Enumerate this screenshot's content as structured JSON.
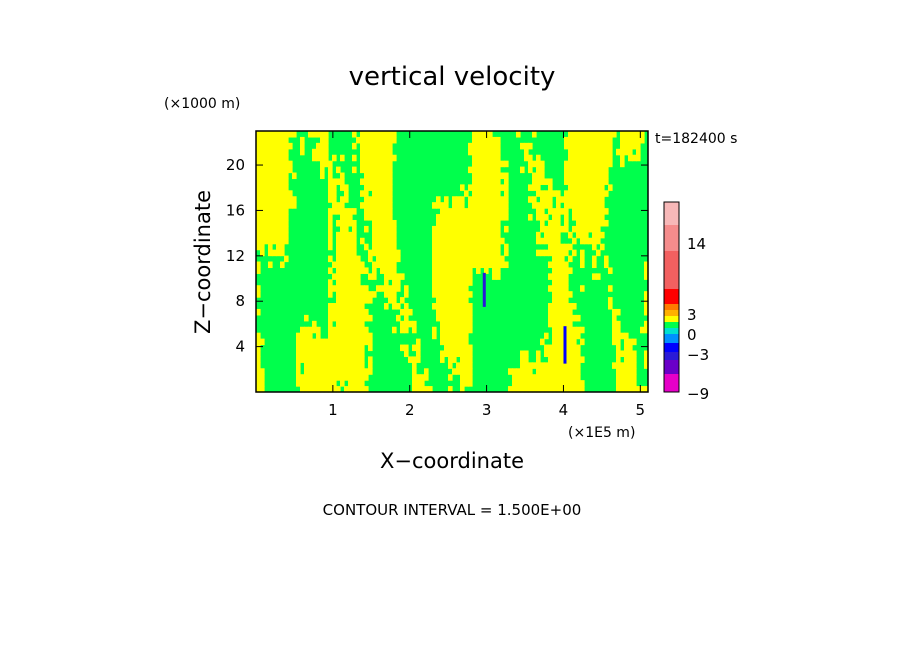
{
  "chart_data": {
    "type": "heatmap",
    "title": "vertical velocity",
    "xlabel": "X−coordinate",
    "ylabel": "Z−coordinate",
    "x_unit_label": "(×1E5 m)",
    "y_unit_label": "(×1000 m)",
    "time_label": "t=182400 s",
    "contour_interval_label": "CONTOUR INTERVAL = 1.500E+00",
    "xlim": [
      0,
      5.1
    ],
    "ylim": [
      0,
      23
    ],
    "x_ticks": [
      1,
      2,
      3,
      4,
      5
    ],
    "y_ticks": [
      4,
      8,
      12,
      16,
      20
    ],
    "colorbar": {
      "levels": [
        {
          "lo": -9,
          "hi": -7.5,
          "color": "#e600c8"
        },
        {
          "lo": -7.5,
          "hi": -6,
          "color": "#6a00c8"
        },
        {
          "lo": -6,
          "hi": -4.5,
          "color": "#2a1ad8"
        },
        {
          "lo": -4.5,
          "hi": -3,
          "color": "#0000ff"
        },
        {
          "lo": -3,
          "hi": -1.5,
          "color": "#0090ff"
        },
        {
          "lo": -1.5,
          "hi": 0,
          "color": "#00e0d0"
        },
        {
          "lo": 0,
          "hi": 1.5,
          "color": "#00ff4c"
        },
        {
          "lo": 1.5,
          "hi": 3,
          "color": "#ffff00"
        },
        {
          "lo": 3,
          "hi": 4.5,
          "color": "#ffb000"
        },
        {
          "lo": 4.5,
          "hi": 6,
          "color": "#ff7a00"
        },
        {
          "lo": 6,
          "hi": 8,
          "color": "#ff0000"
        },
        {
          "lo": 8,
          "hi": 14,
          "color": "#f26060"
        },
        {
          "lo": 14,
          "hi": 18,
          "color": "#f58c8c"
        },
        {
          "lo": 18,
          "hi": 22,
          "color": "#f7b8b8"
        }
      ],
      "tick_labels": [
        "14",
        "3",
        "0",
        "−3",
        "−9"
      ]
    },
    "dominant_fields": [
      {
        "range": "0 to 1.5",
        "color": "#00ff4c"
      },
      {
        "range": "1.5 to 3",
        "color": "#ffff00"
      }
    ],
    "features": [
      {
        "x": 2.97,
        "z_from": 7.5,
        "z_to": 10.5,
        "value": -4.5,
        "color": "#2a1ad8"
      },
      {
        "x": 4.02,
        "z_from": 2.5,
        "z_to": 5.8,
        "value": -3,
        "color": "#0000ff"
      }
    ]
  }
}
